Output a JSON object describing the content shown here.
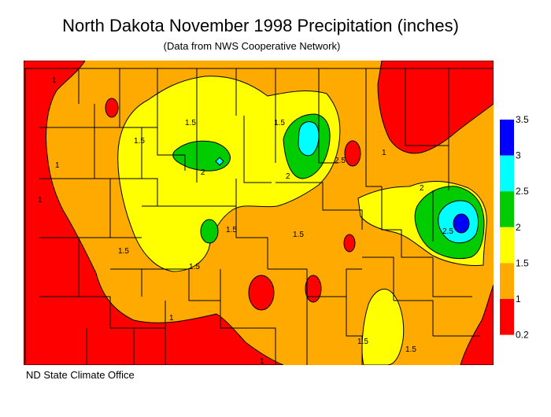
{
  "title": "North Dakota November 1998 Precipitation (inches)",
  "subtitle": "(Data from NWS Cooperative Network)",
  "credit": "ND State Climate Office",
  "legend": {
    "breaks": [
      "3.5",
      "3",
      "2.5",
      "2",
      "1.5",
      "1",
      "0.2"
    ],
    "colors": [
      "#0000ff",
      "#00ffff",
      "#00cc00",
      "#ffff00",
      "#ffaa00",
      "#ff0000"
    ]
  },
  "contour_labels": [
    "1",
    "1",
    "1",
    "1",
    "1",
    "1",
    "1.5",
    "1.5",
    "1.5",
    "1.5",
    "1.5",
    "1.5",
    "1.5",
    "1.5",
    "1.5",
    "2",
    "2",
    "2",
    "2.5",
    "2.5"
  ],
  "colors": {
    "red": "#ff0000",
    "orange": "#ffaa00",
    "yellow": "#ffff00",
    "green": "#00cc00",
    "cyan": "#00ffff",
    "blue": "#0000ff"
  }
}
